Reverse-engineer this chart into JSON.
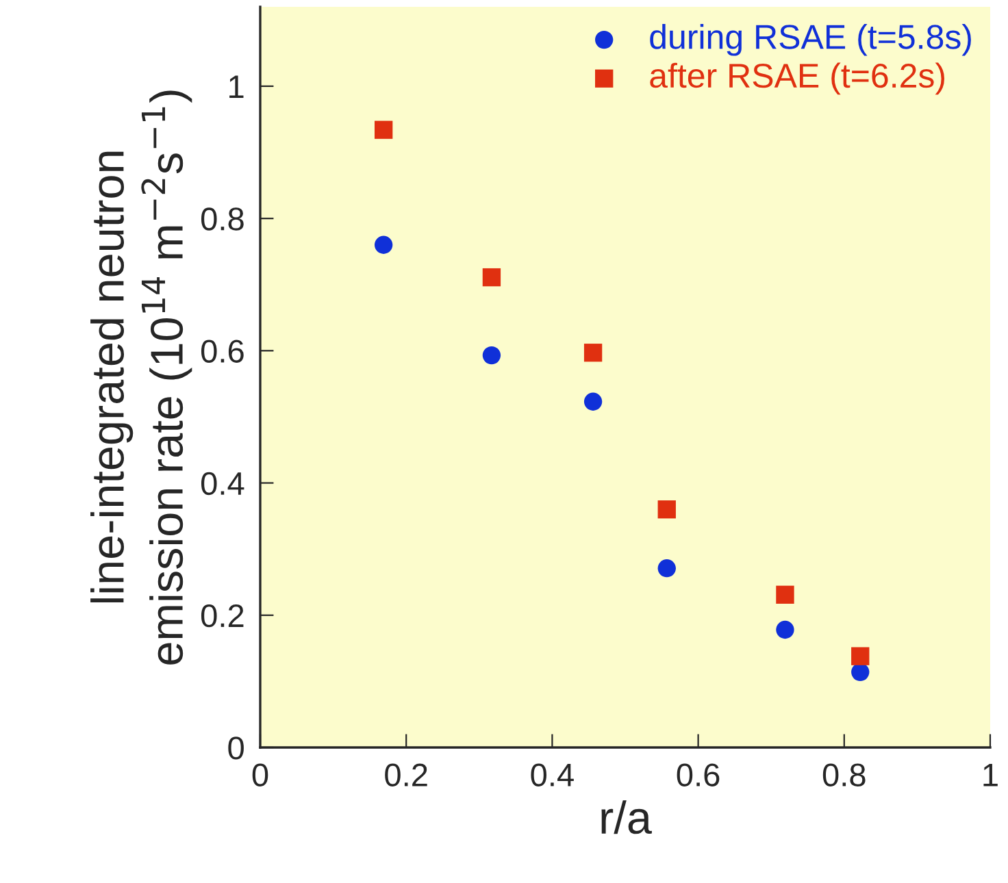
{
  "chart_data": {
    "type": "scatter",
    "xlabel": "r/a",
    "ylabel": "line-integrated neutron\nemission rate (10$^{14}$ m$^{−2}$s$^{−1}$)",
    "xlim": [
      0,
      1
    ],
    "ylim": [
      0,
      1.12
    ],
    "xticks": [
      0,
      0.2,
      0.4,
      0.6,
      0.8,
      1
    ],
    "yticks": [
      0,
      0.2,
      0.4,
      0.6,
      0.8,
      1
    ],
    "grid": false,
    "legend": "top right",
    "series": [
      {
        "name": "during RSAE (t=5.8s)",
        "color": "#1030d8",
        "marker": "circle",
        "x": [
          0.169,
          0.317,
          0.456,
          0.557,
          0.719,
          0.822
        ],
        "values": [
          0.76,
          0.593,
          0.523,
          0.271,
          0.178,
          0.114
        ]
      },
      {
        "name": "after RSAE (t=6.2s)",
        "color": "#e03010",
        "marker": "square",
        "x": [
          0.169,
          0.317,
          0.456,
          0.557,
          0.719,
          0.822
        ],
        "values": [
          0.934,
          0.711,
          0.597,
          0.36,
          0.231,
          0.138
        ]
      }
    ]
  }
}
